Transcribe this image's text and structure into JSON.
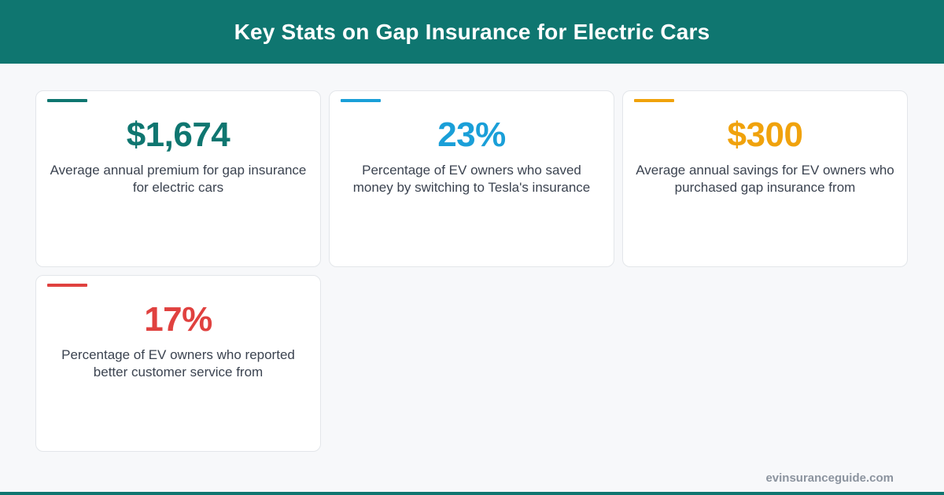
{
  "header": {
    "title": "Key Stats on Gap Insurance for Electric Cars"
  },
  "cards": [
    {
      "value": "$1,674",
      "description": "Average annual premium for gap insurance for electric cars",
      "color": "#0f7670"
    },
    {
      "value": "23%",
      "description": "Percentage of EV owners who saved money by switching to Tesla's insurance",
      "color": "#1a9fd8"
    },
    {
      "value": "$300",
      "description": "Average annual savings for EV owners who purchased gap insurance from",
      "color": "#f0a20c"
    },
    {
      "value": "17%",
      "description": "Percentage of EV owners who reported better customer service from",
      "color": "#e0413f"
    }
  ],
  "footer": {
    "site": "evinsuranceguide.com"
  }
}
